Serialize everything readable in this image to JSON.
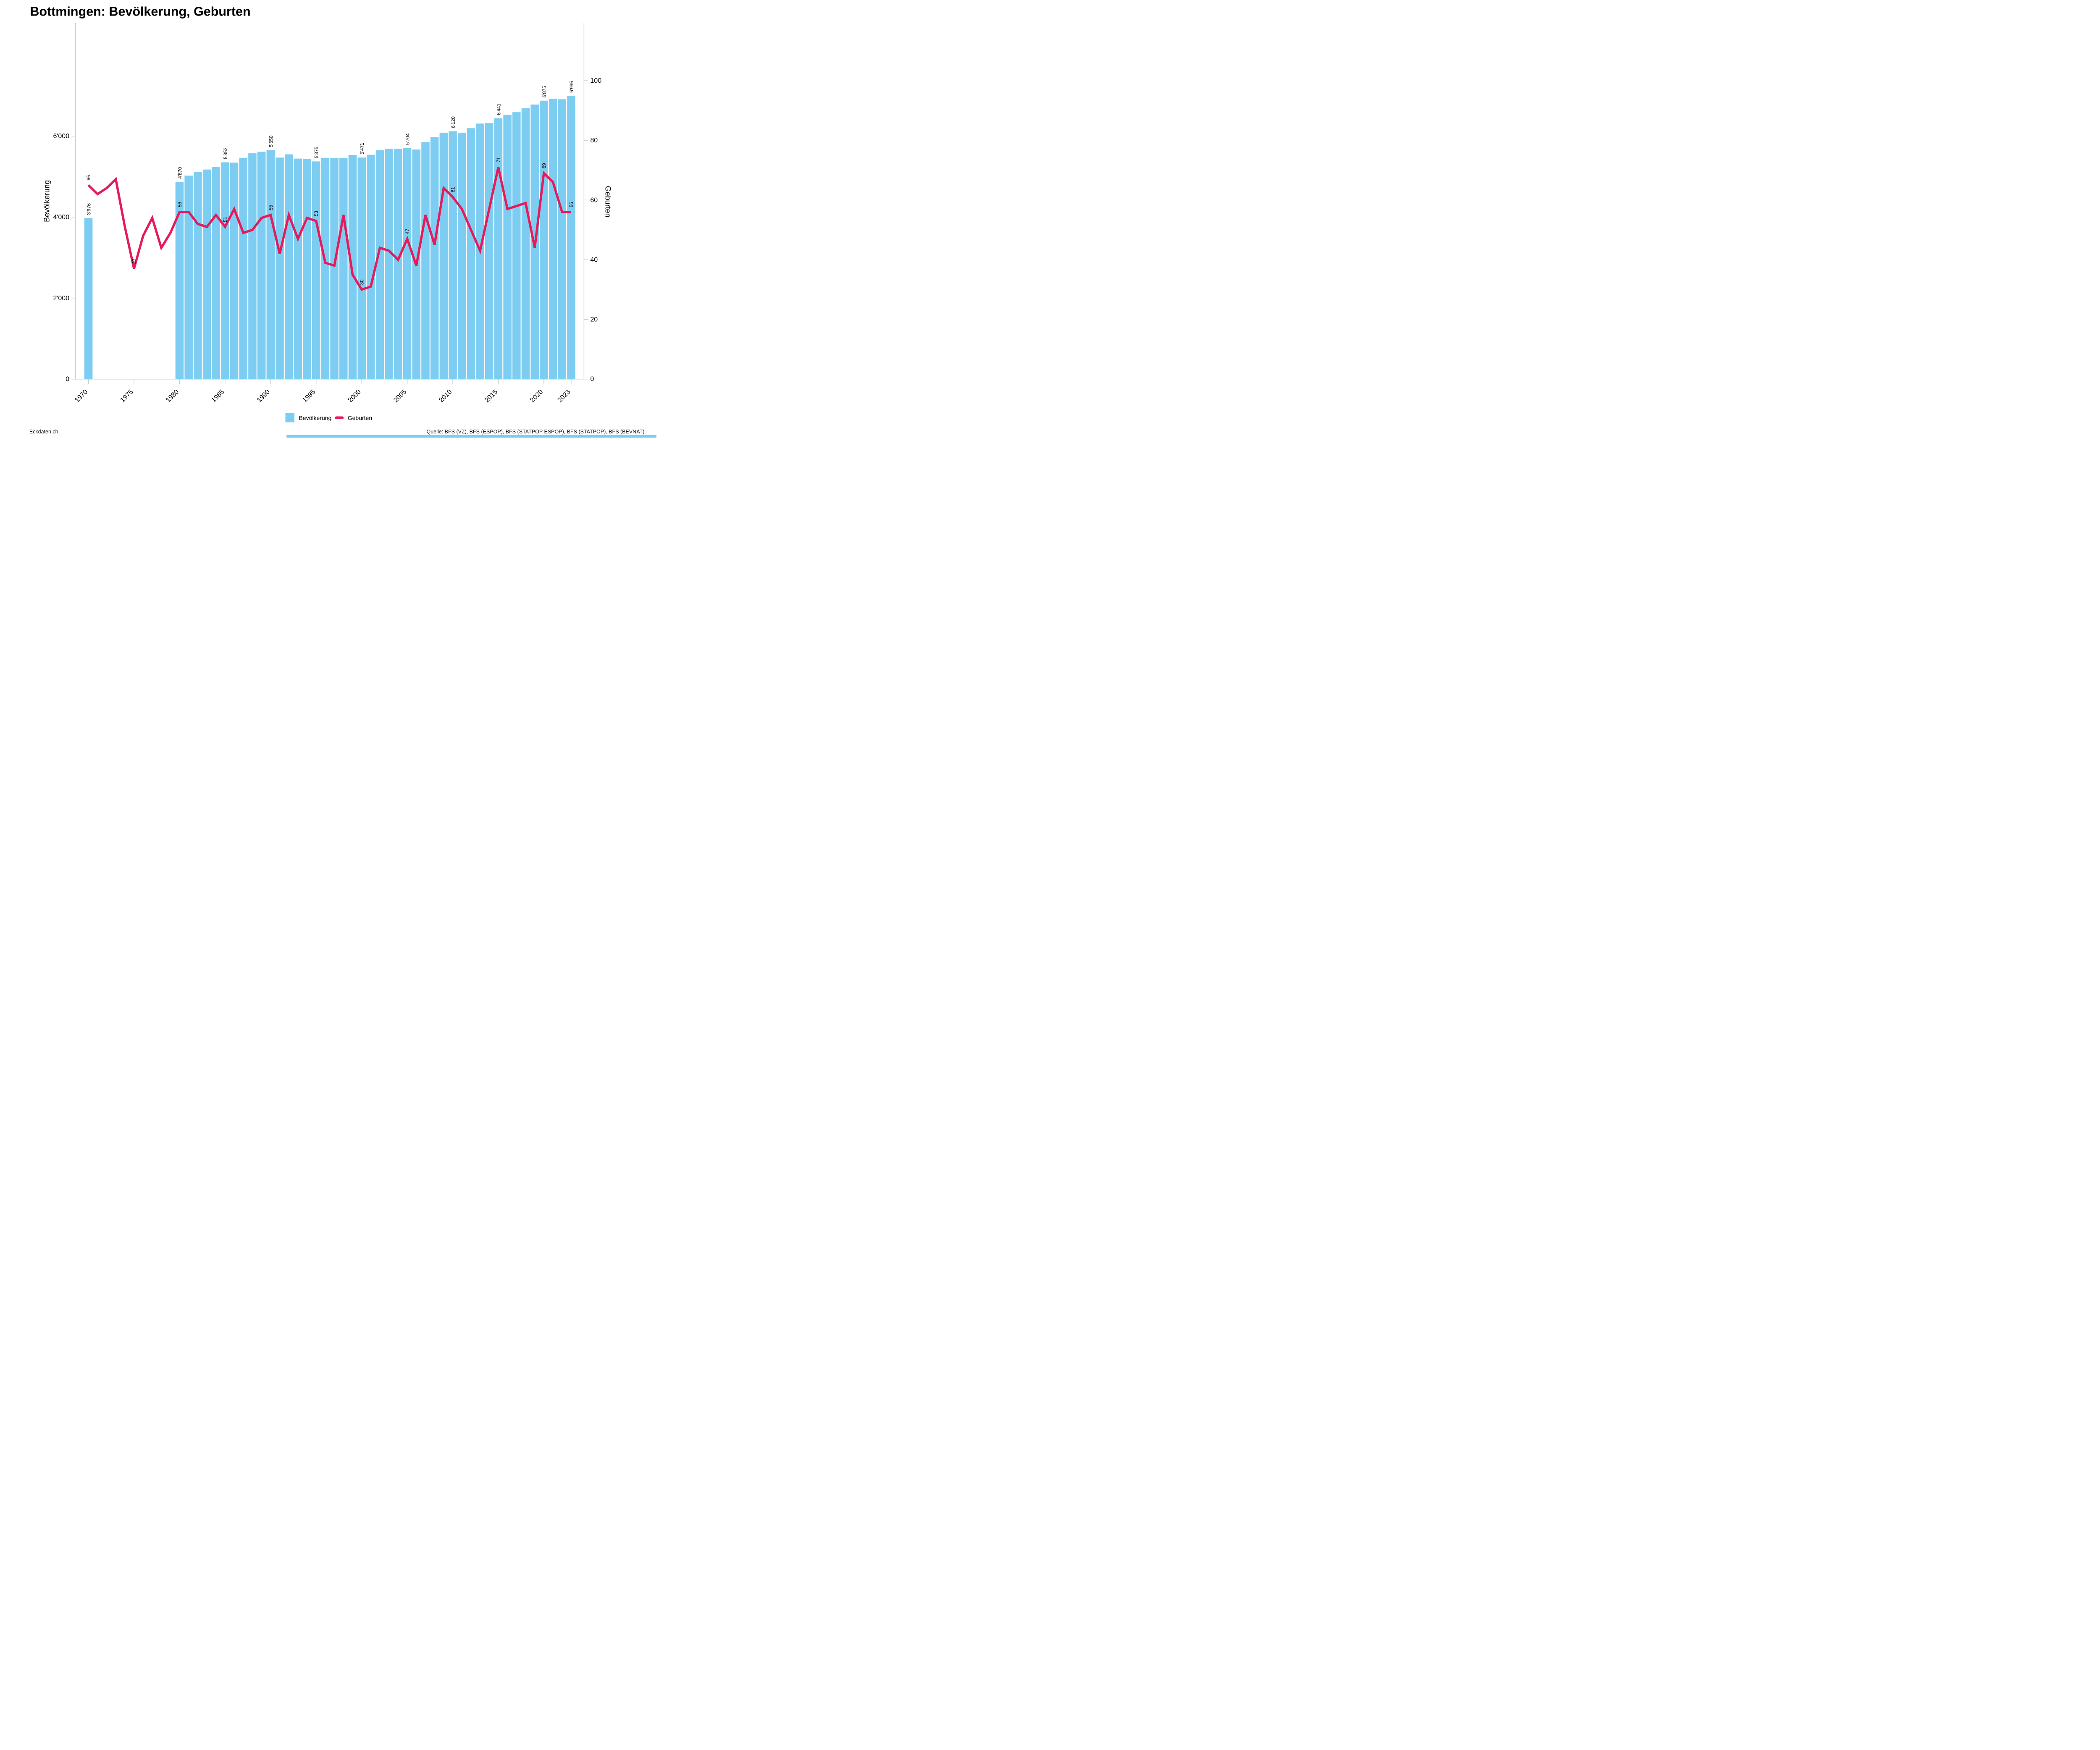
{
  "title": "Bottmingen: Bevölkerung, Geburten",
  "chart_data": {
    "type": "combo",
    "x": [
      1970,
      1971,
      1972,
      1973,
      1974,
      1975,
      1976,
      1977,
      1978,
      1979,
      1980,
      1981,
      1982,
      1983,
      1984,
      1985,
      1986,
      1987,
      1988,
      1989,
      1990,
      1991,
      1992,
      1993,
      1994,
      1995,
      1996,
      1997,
      1998,
      1999,
      2000,
      2001,
      2002,
      2003,
      2004,
      2005,
      2006,
      2007,
      2008,
      2009,
      2010,
      2011,
      2012,
      2013,
      2014,
      2015,
      2016,
      2017,
      2018,
      2019,
      2020,
      2021,
      2022,
      2023
    ],
    "series": [
      {
        "name": "Bevölkerung",
        "type": "bar",
        "axis": "left",
        "color": "#7CCDF1",
        "values": [
          3976,
          null,
          null,
          null,
          null,
          null,
          null,
          null,
          null,
          null,
          4870,
          5025,
          5120,
          5175,
          5240,
          5353,
          5345,
          5465,
          5575,
          5615,
          5650,
          5470,
          5550,
          5445,
          5430,
          5375,
          5465,
          5455,
          5455,
          5535,
          5471,
          5540,
          5650,
          5690,
          5690,
          5704,
          5670,
          5850,
          5975,
          6085,
          6120,
          6085,
          6195,
          6310,
          6320,
          6441,
          6525,
          6590,
          6690,
          6780,
          6875,
          6925,
          6910,
          6995
        ]
      },
      {
        "name": "Geburten",
        "type": "line",
        "axis": "right",
        "color": "#E51A5B",
        "values": [
          65,
          62,
          64,
          67,
          51,
          37,
          48,
          54,
          44,
          49,
          56,
          56,
          52,
          51,
          55,
          51,
          57,
          49,
          50,
          54,
          55,
          42,
          55,
          47,
          54,
          53,
          39,
          38,
          55,
          35,
          30,
          31,
          44,
          43,
          40,
          47,
          38,
          55,
          45,
          64,
          61,
          57,
          50,
          43,
          57,
          71,
          57,
          58,
          59,
          44,
          69,
          66,
          56,
          56
        ]
      }
    ],
    "left_axis": {
      "label": "Bevölkerung",
      "ticks": [
        0,
        2000,
        4000,
        6000
      ]
    },
    "right_axis": {
      "label": "Geburten",
      "ticks": [
        0,
        20,
        40,
        60,
        80,
        100
      ]
    },
    "x_ticks": [
      1970,
      1975,
      1980,
      1985,
      1990,
      1995,
      2000,
      2005,
      2010,
      2015,
      2020,
      2023
    ],
    "bar_labeled_years": [
      1970,
      1980,
      1985,
      1990,
      1995,
      2000,
      2005,
      2010,
      2015,
      2020,
      2023
    ],
    "line_labeled_years": [
      1970,
      1975,
      1980,
      1985,
      1990,
      1995,
      2000,
      2005,
      2010,
      2015,
      2020,
      2023
    ],
    "grid": "off",
    "legend_position": "bottom"
  },
  "legend": {
    "items": [
      {
        "label": "Bevölkerung",
        "color": "#7CCDF1",
        "marker": "square"
      },
      {
        "label": "Geburten",
        "color": "#E51A5B",
        "marker": "dash"
      }
    ]
  },
  "footer": {
    "left": "Eckdaten.ch",
    "right": "Quelle: BFS (VZ), BFS (ESPOP), BFS (STATPOP ESPOP), BFS (STATPOP), BFS (BEVNAT)"
  },
  "colors": {
    "bar": "#7CCDF1",
    "line": "#E51A5B",
    "axis": "#C9C9C9",
    "text": "#000000",
    "bottom_strip": "#7CCDF1"
  }
}
